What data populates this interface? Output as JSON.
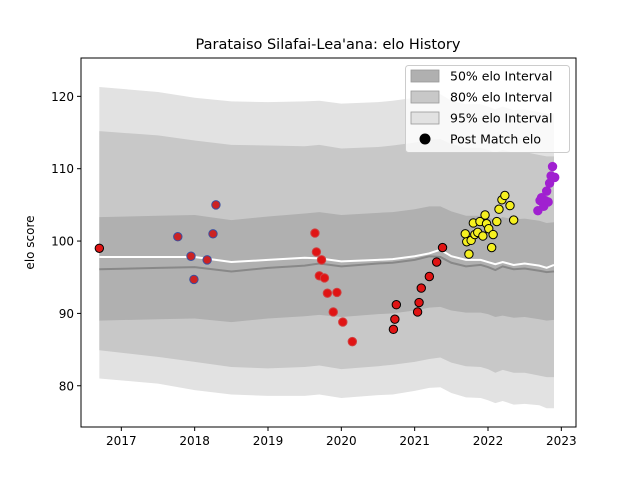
{
  "chart_data": {
    "type": "scatter",
    "title": "Parataiso Silafai-Lea'ana: elo History",
    "xlabel": "",
    "ylabel": "elo score",
    "xlim": [
      2016.45,
      2023.2
    ],
    "ylim": [
      74.3,
      125.3
    ],
    "x_ticks": [
      2017,
      2018,
      2019,
      2020,
      2021,
      2022,
      2023
    ],
    "y_ticks": [
      80,
      90,
      100,
      110,
      120
    ],
    "legend_position": "top-right",
    "legend": [
      {
        "label": "50% elo Interval",
        "kind": "patch",
        "color": "#b0b0b0"
      },
      {
        "label": "80% elo Interval",
        "kind": "patch",
        "color": "#c8c8c8"
      },
      {
        "label": "95% elo Interval",
        "kind": "patch",
        "color": "#e2e2e2"
      },
      {
        "label": "Post Match elo",
        "kind": "marker",
        "color": "#000000"
      }
    ],
    "bands": {
      "x": [
        2016.7,
        2017.5,
        2018.0,
        2018.5,
        2019.0,
        2019.5,
        2019.7,
        2020.0,
        2020.5,
        2020.7,
        2021.0,
        2021.2,
        2021.35,
        2021.5,
        2021.7,
        2021.9,
        2022.0,
        2022.1,
        2022.2,
        2022.35,
        2022.5,
        2022.7,
        2022.8,
        2022.9
      ],
      "median": [
        96.1,
        96.3,
        96.4,
        95.8,
        96.3,
        96.6,
        96.9,
        96.5,
        96.9,
        97.0,
        97.4,
        97.9,
        97.8,
        97.0,
        96.5,
        96.7,
        96.4,
        96.0,
        96.5,
        96.1,
        96.2,
        95.9,
        95.7,
        95.8
      ],
      "mean": [
        97.8,
        97.8,
        97.8,
        97.1,
        97.4,
        97.7,
        97.6,
        97.2,
        97.4,
        97.5,
        97.9,
        98.3,
        98.8,
        97.9,
        97.4,
        97.4,
        97.1,
        96.8,
        97.1,
        96.7,
        96.9,
        96.6,
        96.3,
        96.7
      ],
      "p50": {
        "lower": [
          89.0,
          89.2,
          89.3,
          88.8,
          89.3,
          89.6,
          89.8,
          89.5,
          89.9,
          90.0,
          90.4,
          90.8,
          90.9,
          90.4,
          90.1,
          90.1,
          89.9,
          89.5,
          89.7,
          89.4,
          89.5,
          89.2,
          89.0,
          89.1
        ],
        "upper": [
          103.3,
          103.5,
          103.6,
          102.9,
          103.4,
          103.8,
          104.0,
          103.6,
          103.9,
          104.0,
          104.4,
          104.8,
          104.8,
          104.1,
          103.5,
          103.5,
          103.3,
          102.9,
          103.3,
          103.0,
          103.1,
          102.8,
          102.5,
          102.6
        ]
      },
      "p80": {
        "lower": [
          84.9,
          84.0,
          83.3,
          82.6,
          82.4,
          82.6,
          82.8,
          82.3,
          82.7,
          82.9,
          83.3,
          83.7,
          83.9,
          83.2,
          82.7,
          82.6,
          82.3,
          81.8,
          82.2,
          81.8,
          81.8,
          81.4,
          81.2,
          81.2
        ],
        "upper": [
          115.2,
          114.6,
          113.9,
          113.3,
          113.2,
          113.1,
          113.3,
          112.8,
          113.0,
          113.2,
          113.6,
          114.0,
          114.1,
          113.4,
          112.9,
          112.9,
          112.6,
          112.2,
          112.6,
          112.2,
          112.3,
          111.9,
          111.7,
          111.7
        ]
      },
      "p95": {
        "lower": [
          81.0,
          80.3,
          79.4,
          78.8,
          78.6,
          78.6,
          78.8,
          78.3,
          78.7,
          78.8,
          79.3,
          79.7,
          79.8,
          79.0,
          78.4,
          78.3,
          78.0,
          77.6,
          77.9,
          77.4,
          77.5,
          77.3,
          76.9,
          76.9
        ],
        "upper": [
          121.3,
          120.6,
          119.8,
          119.3,
          119.2,
          119.3,
          119.4,
          119.0,
          119.2,
          119.4,
          119.8,
          120.2,
          120.3,
          119.4,
          118.9,
          118.9,
          118.6,
          118.2,
          118.6,
          118.1,
          118.2,
          117.8,
          117.6,
          117.6
        ]
      }
    },
    "series": [
      {
        "color": "#e01414",
        "edge": "#000000",
        "points": [
          [
            2016.7,
            99.0
          ]
        ]
      },
      {
        "color": "#cc2222",
        "edge": "#3a4fa0",
        "points": [
          [
            2017.77,
            100.6
          ],
          [
            2017.95,
            97.9
          ],
          [
            2017.99,
            94.7
          ],
          [
            2018.17,
            97.4
          ],
          [
            2018.25,
            101.0
          ],
          [
            2018.29,
            105.0
          ]
        ]
      },
      {
        "color": "#e01414",
        "edge": "#d04040",
        "points": [
          [
            2019.64,
            101.1
          ],
          [
            2019.66,
            98.5
          ],
          [
            2019.7,
            95.2
          ],
          [
            2019.73,
            97.4
          ],
          [
            2019.77,
            94.9
          ],
          [
            2019.81,
            92.8
          ],
          [
            2019.89,
            90.2
          ],
          [
            2019.94,
            92.9
          ],
          [
            2020.02,
            88.8
          ],
          [
            2020.15,
            86.1
          ]
        ]
      },
      {
        "color": "#e01414",
        "edge": "#000000",
        "points": [
          [
            2020.71,
            87.8
          ],
          [
            2020.73,
            89.2
          ],
          [
            2020.75,
            91.2
          ],
          [
            2021.04,
            90.2
          ],
          [
            2021.06,
            91.5
          ],
          [
            2021.09,
            93.5
          ],
          [
            2021.2,
            95.1
          ],
          [
            2021.3,
            97.1
          ],
          [
            2021.38,
            99.1
          ]
        ]
      },
      {
        "color": "#f5f020",
        "edge": "#000000",
        "points": [
          [
            2021.69,
            101.0
          ],
          [
            2021.71,
            99.9
          ],
          [
            2021.74,
            98.2
          ],
          [
            2021.77,
            100.1
          ],
          [
            2021.8,
            102.5
          ],
          [
            2021.82,
            100.9
          ],
          [
            2021.86,
            101.2
          ],
          [
            2021.89,
            102.7
          ],
          [
            2021.93,
            100.7
          ],
          [
            2021.96,
            103.6
          ],
          [
            2021.98,
            102.4
          ],
          [
            2022.01,
            101.7
          ],
          [
            2022.05,
            99.1
          ],
          [
            2022.07,
            100.9
          ],
          [
            2022.12,
            102.7
          ],
          [
            2022.15,
            104.4
          ],
          [
            2022.19,
            105.7
          ],
          [
            2022.23,
            106.3
          ],
          [
            2022.3,
            104.9
          ],
          [
            2022.35,
            102.9
          ]
        ]
      },
      {
        "color": "#a020d0",
        "edge": "#a020d0",
        "points": [
          [
            2022.68,
            104.2
          ],
          [
            2022.71,
            105.6
          ],
          [
            2022.73,
            106.0
          ],
          [
            2022.76,
            104.8
          ],
          [
            2022.78,
            105.6
          ],
          [
            2022.8,
            106.9
          ],
          [
            2022.82,
            105.4
          ],
          [
            2022.84,
            108.0
          ],
          [
            2022.86,
            109.0
          ],
          [
            2022.88,
            110.3
          ],
          [
            2022.91,
            108.8
          ]
        ]
      }
    ]
  }
}
